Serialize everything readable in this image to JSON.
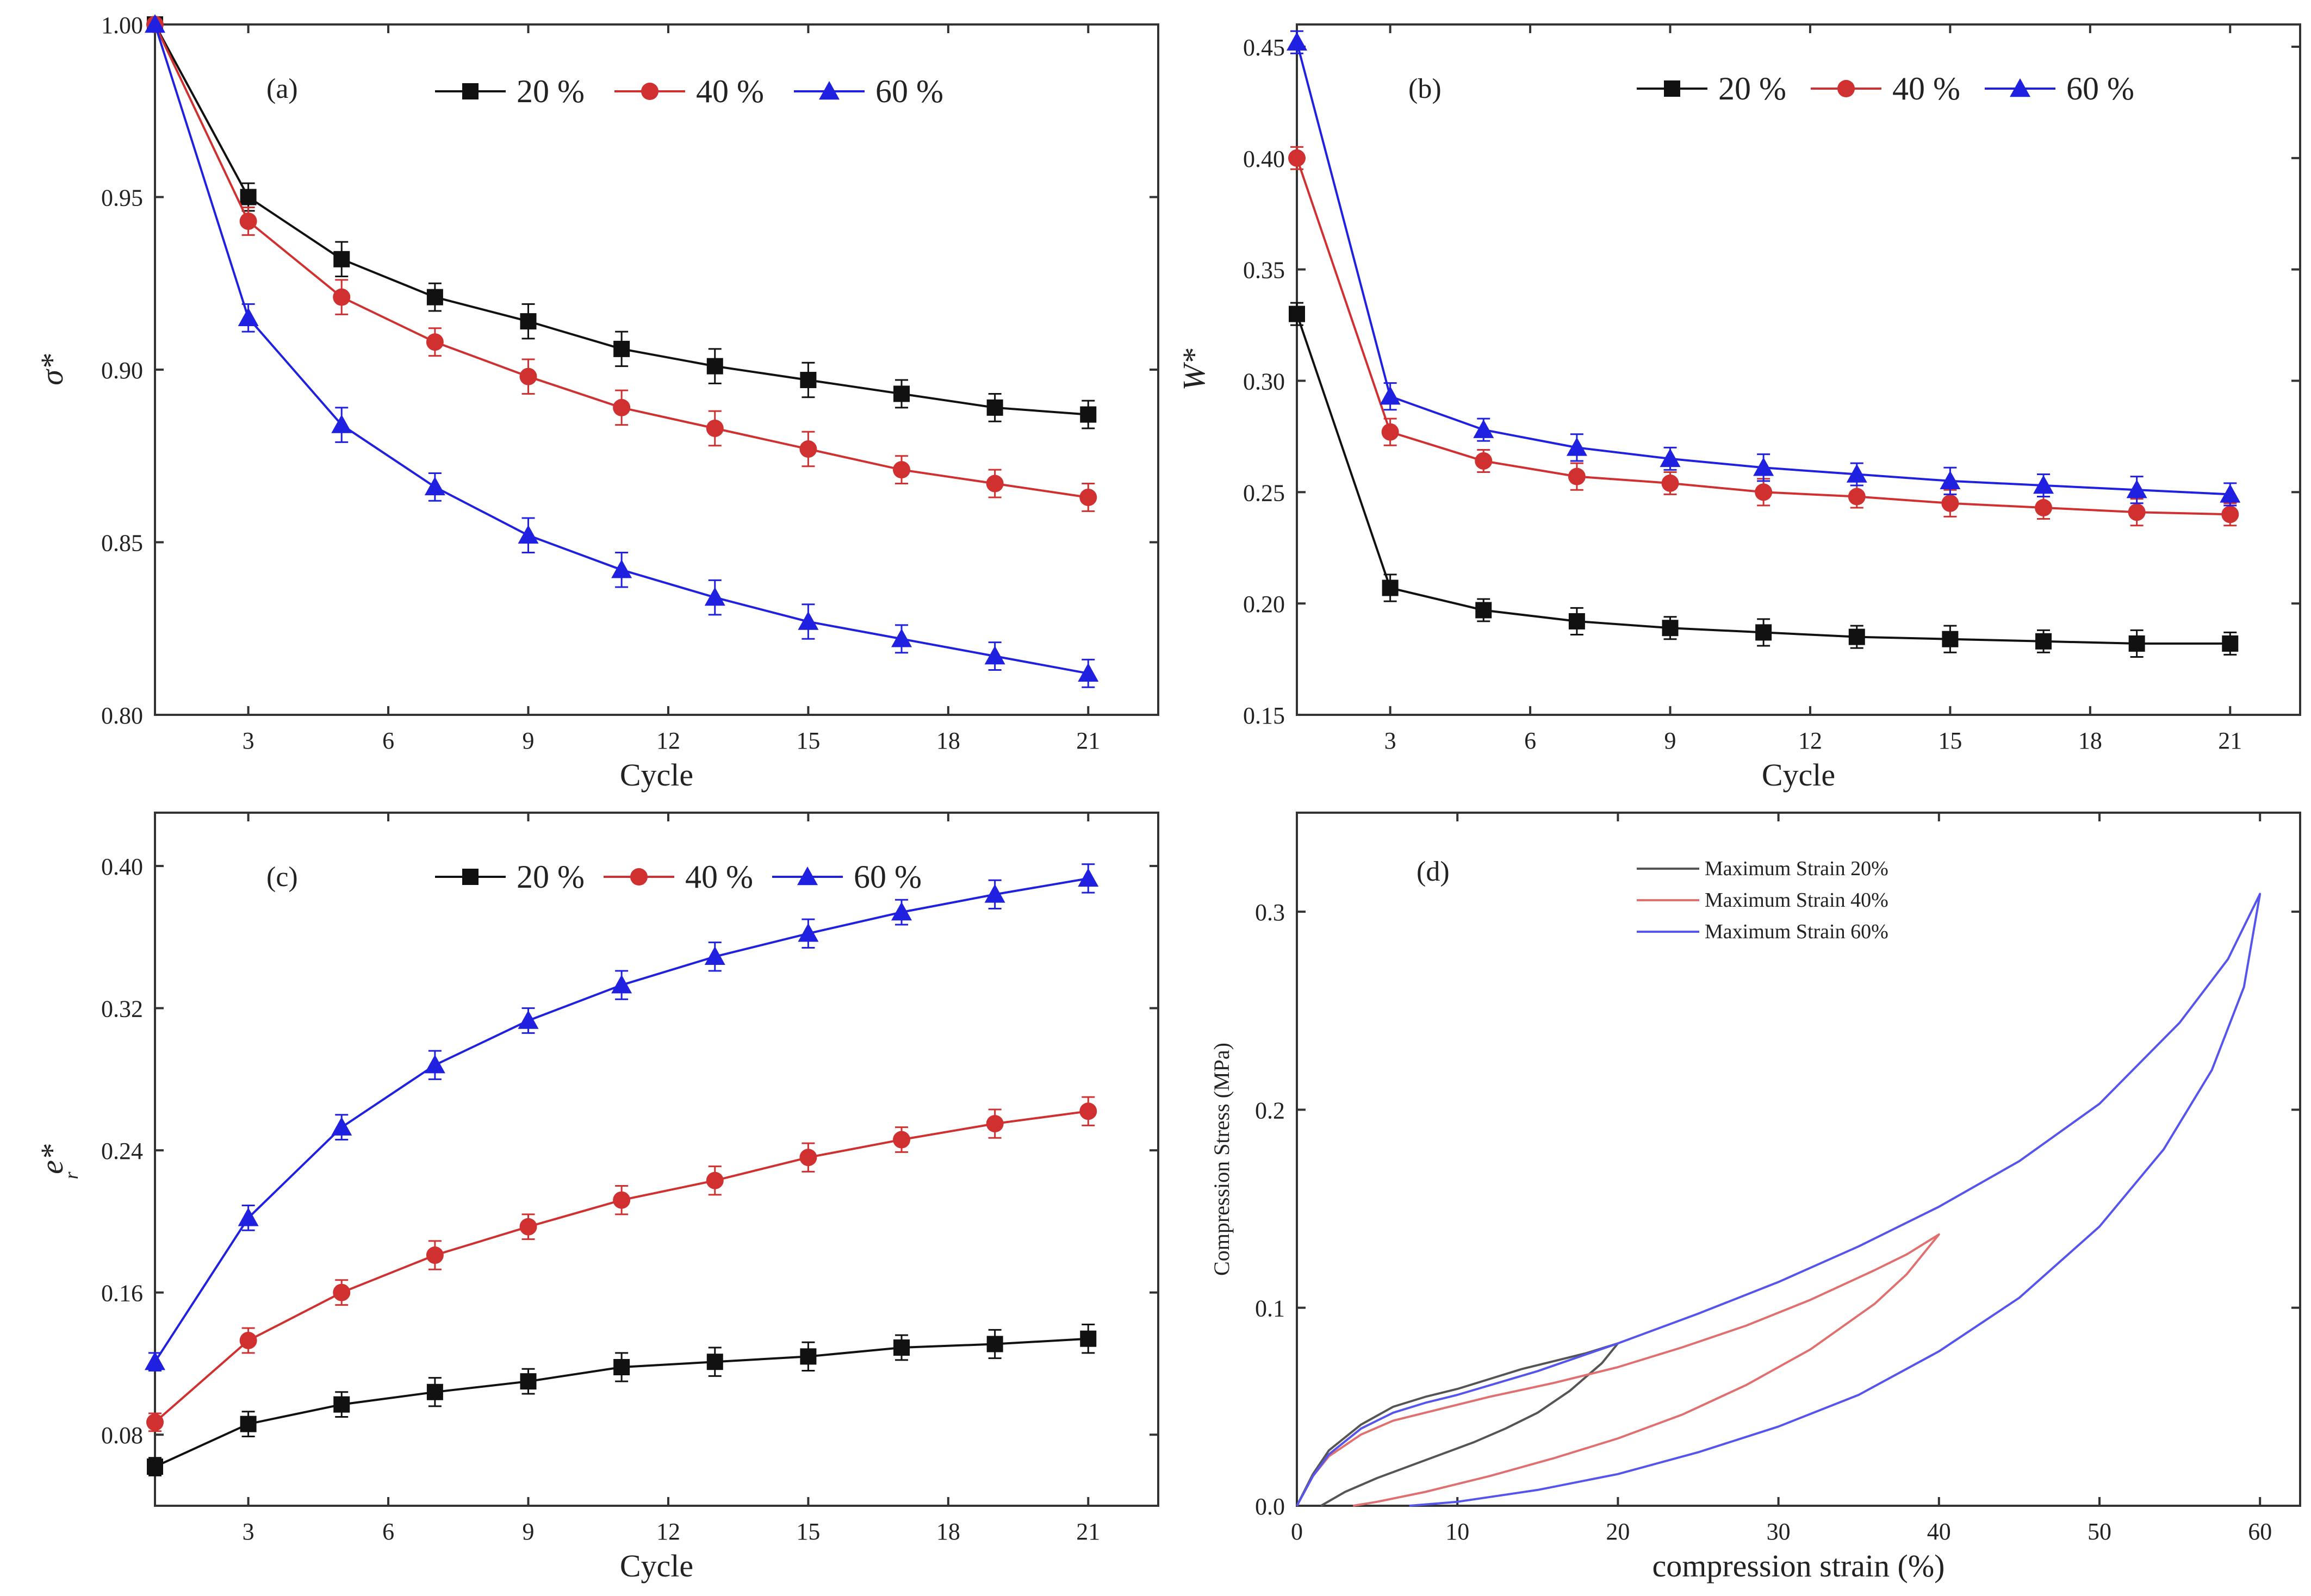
{
  "chart_data": [
    {
      "panel": "a",
      "type": "line",
      "panel_label": "(a)",
      "xlabel": "Cycle",
      "ylabel": "σ*",
      "xlim": [
        1,
        22.5
      ],
      "ylim": [
        0.8,
        1.0
      ],
      "xticks": [
        3,
        6,
        9,
        12,
        15,
        18,
        21
      ],
      "xtick_labels": [
        "3",
        "6",
        "9",
        "12",
        "15",
        "18",
        "21"
      ],
      "yticks": [
        0.8,
        0.85,
        0.9,
        0.95,
        1.0
      ],
      "ytick_labels": [
        "0.80",
        "0.85",
        "0.90",
        "0.95",
        "1.00"
      ],
      "x": [
        1,
        3,
        5,
        7,
        9,
        11,
        13,
        15,
        17,
        19,
        21
      ],
      "legend_position": "top",
      "series": [
        {
          "name": "20 %",
          "color": "#111111",
          "marker": "square",
          "values": [
            1.0,
            0.95,
            0.932,
            0.921,
            0.914,
            0.906,
            0.901,
            0.897,
            0.893,
            0.889,
            0.887
          ],
          "errors": [
            0,
            0.004,
            0.005,
            0.004,
            0.005,
            0.005,
            0.005,
            0.005,
            0.004,
            0.004,
            0.004
          ]
        },
        {
          "name": "40 %",
          "color": "#d03030",
          "marker": "circle",
          "values": [
            1.0,
            0.943,
            0.921,
            0.908,
            0.898,
            0.889,
            0.883,
            0.877,
            0.871,
            0.867,
            0.863
          ],
          "errors": [
            0,
            0.004,
            0.005,
            0.004,
            0.005,
            0.005,
            0.005,
            0.005,
            0.004,
            0.004,
            0.004
          ]
        },
        {
          "name": "60 %",
          "color": "#2020e0",
          "marker": "triangle",
          "values": [
            1.0,
            0.915,
            0.884,
            0.866,
            0.852,
            0.842,
            0.834,
            0.827,
            0.822,
            0.817,
            0.812
          ],
          "errors": [
            0,
            0.004,
            0.005,
            0.004,
            0.005,
            0.005,
            0.005,
            0.005,
            0.004,
            0.004,
            0.004
          ]
        }
      ]
    },
    {
      "panel": "b",
      "type": "line",
      "panel_label": "(b)",
      "xlabel": "Cycle",
      "ylabel": "W*",
      "xlim": [
        1,
        22.5
      ],
      "ylim": [
        0.15,
        0.46
      ],
      "xticks": [
        3,
        6,
        9,
        12,
        15,
        18,
        21
      ],
      "xtick_labels": [
        "3",
        "6",
        "9",
        "12",
        "15",
        "18",
        "21"
      ],
      "yticks": [
        0.15,
        0.2,
        0.25,
        0.3,
        0.35,
        0.4,
        0.45
      ],
      "ytick_labels": [
        "0.15",
        "0.20",
        "0.25",
        "0.30",
        "0.35",
        "0.40",
        "0.45"
      ],
      "x": [
        1,
        3,
        5,
        7,
        9,
        11,
        13,
        15,
        17,
        19,
        21
      ],
      "legend_position": "top",
      "series": [
        {
          "name": "20 %",
          "color": "#111111",
          "marker": "square",
          "values": [
            0.33,
            0.207,
            0.197,
            0.192,
            0.189,
            0.187,
            0.185,
            0.184,
            0.183,
            0.182,
            0.182
          ],
          "errors": [
            0.005,
            0.006,
            0.005,
            0.006,
            0.005,
            0.006,
            0.005,
            0.006,
            0.005,
            0.006,
            0.005
          ]
        },
        {
          "name": "40 %",
          "color": "#d03030",
          "marker": "circle",
          "values": [
            0.4,
            0.277,
            0.264,
            0.257,
            0.254,
            0.25,
            0.248,
            0.245,
            0.243,
            0.241,
            0.24
          ],
          "errors": [
            0.005,
            0.006,
            0.005,
            0.006,
            0.005,
            0.006,
            0.005,
            0.006,
            0.005,
            0.006,
            0.005
          ]
        },
        {
          "name": "60 %",
          "color": "#2020e0",
          "marker": "triangle",
          "values": [
            0.452,
            0.293,
            0.278,
            0.27,
            0.265,
            0.261,
            0.258,
            0.255,
            0.253,
            0.251,
            0.249
          ],
          "errors": [
            0.005,
            0.006,
            0.005,
            0.006,
            0.005,
            0.006,
            0.005,
            0.006,
            0.005,
            0.006,
            0.005
          ]
        }
      ]
    },
    {
      "panel": "c",
      "type": "line",
      "panel_label": "(c)",
      "xlabel": "Cycle",
      "ylabel": "e*",
      "ylabel_sub": "r",
      "xlim": [
        1,
        22.5
      ],
      "ylim": [
        0.04,
        0.43
      ],
      "xticks": [
        3,
        6,
        9,
        12,
        15,
        18,
        21
      ],
      "xtick_labels": [
        "3",
        "6",
        "9",
        "12",
        "15",
        "18",
        "21"
      ],
      "yticks": [
        0.08,
        0.16,
        0.24,
        0.32,
        0.4
      ],
      "ytick_labels": [
        "0.08",
        "0.16",
        "0.24",
        "0.32",
        "0.40"
      ],
      "x": [
        1,
        3,
        5,
        7,
        9,
        11,
        13,
        15,
        17,
        19,
        21
      ],
      "legend_position": "top",
      "series": [
        {
          "name": "20 %",
          "color": "#111111",
          "marker": "square",
          "values": [
            0.062,
            0.086,
            0.097,
            0.104,
            0.11,
            0.118,
            0.121,
            0.124,
            0.129,
            0.131,
            0.134
          ],
          "errors": [
            0.005,
            0.007,
            0.007,
            0.008,
            0.007,
            0.008,
            0.008,
            0.008,
            0.007,
            0.008,
            0.008
          ]
        },
        {
          "name": "40 %",
          "color": "#d03030",
          "marker": "circle",
          "values": [
            0.087,
            0.133,
            0.16,
            0.181,
            0.197,
            0.212,
            0.223,
            0.236,
            0.246,
            0.255,
            0.262
          ],
          "errors": [
            0.005,
            0.007,
            0.007,
            0.008,
            0.007,
            0.008,
            0.008,
            0.008,
            0.007,
            0.008,
            0.008
          ]
        },
        {
          "name": "60 %",
          "color": "#2020e0",
          "marker": "triangle",
          "values": [
            0.121,
            0.202,
            0.253,
            0.288,
            0.313,
            0.333,
            0.349,
            0.362,
            0.374,
            0.384,
            0.393
          ],
          "errors": [
            0.005,
            0.007,
            0.007,
            0.008,
            0.007,
            0.008,
            0.008,
            0.008,
            0.007,
            0.008,
            0.008
          ]
        }
      ]
    },
    {
      "panel": "d",
      "type": "line",
      "panel_label": "(d)",
      "xlabel": "compression strain (%)",
      "ylabel": "Compression Stress (MPa)",
      "xlim": [
        0,
        62.5
      ],
      "ylim": [
        0.0,
        0.35
      ],
      "xticks": [
        0,
        10,
        20,
        30,
        40,
        50,
        60
      ],
      "xtick_labels": [
        "0",
        "10",
        "20",
        "30",
        "40",
        "50",
        "60"
      ],
      "yticks": [
        0.0,
        0.1,
        0.2,
        0.3
      ],
      "ytick_labels": [
        "0.0",
        "0.1",
        "0.2",
        "0.3"
      ],
      "legend_position": "top-left",
      "series": [
        {
          "name": "Maximum Strain 20%",
          "color": "#555555",
          "x": [
            0,
            1,
            2,
            4,
            6,
            8,
            10,
            12,
            14,
            16,
            18,
            20,
            19,
            17,
            15,
            13,
            11,
            9,
            7,
            5,
            3,
            1.5
          ],
          "y": [
            0,
            0.016,
            0.028,
            0.041,
            0.05,
            0.055,
            0.059,
            0.064,
            0.069,
            0.073,
            0.077,
            0.082,
            0.072,
            0.058,
            0.047,
            0.039,
            0.032,
            0.026,
            0.02,
            0.014,
            0.007,
            0
          ]
        },
        {
          "name": "Maximum Strain 40%",
          "color": "#e07070",
          "x": [
            0,
            1,
            2,
            4,
            6,
            8,
            12,
            16,
            20,
            24,
            28,
            32,
            36,
            38,
            40,
            38,
            36,
            32,
            28,
            24,
            20,
            16,
            12,
            8,
            5,
            3.5
          ],
          "y": [
            0,
            0.015,
            0.025,
            0.036,
            0.043,
            0.047,
            0.055,
            0.062,
            0.07,
            0.08,
            0.091,
            0.104,
            0.119,
            0.127,
            0.137,
            0.117,
            0.102,
            0.079,
            0.061,
            0.046,
            0.034,
            0.024,
            0.015,
            0.007,
            0.002,
            0
          ]
        },
        {
          "name": "Maximum Strain 60%",
          "color": "#5555ee",
          "x": [
            0,
            1,
            2,
            4,
            6,
            8,
            10,
            15,
            20,
            25,
            30,
            35,
            40,
            45,
            50,
            55,
            58,
            60,
            59,
            57,
            54,
            50,
            45,
            40,
            35,
            30,
            25,
            20,
            15,
            10,
            7
          ],
          "y": [
            0,
            0.015,
            0.026,
            0.039,
            0.047,
            0.052,
            0.056,
            0.068,
            0.082,
            0.097,
            0.113,
            0.131,
            0.151,
            0.174,
            0.203,
            0.244,
            0.276,
            0.309,
            0.262,
            0.22,
            0.18,
            0.141,
            0.105,
            0.078,
            0.056,
            0.04,
            0.027,
            0.016,
            0.008,
            0.002,
            0
          ]
        }
      ]
    }
  ]
}
